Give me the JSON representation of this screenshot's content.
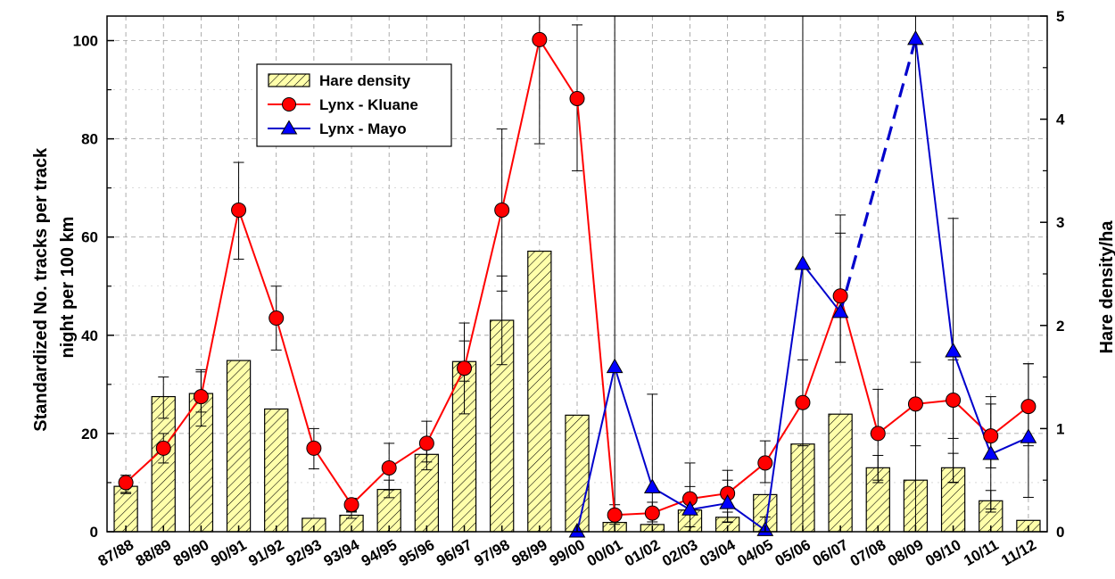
{
  "chart_data": {
    "type": "bar+line",
    "title": "",
    "xlabel": "",
    "ylabel_left": "Standardized No. tracks per track night per 100 km",
    "ylabel_left_lines": [
      "Standardized No. tracks per track",
      "night per 100 km"
    ],
    "ylabel_right": "Hare density/ha",
    "categories": [
      "87/88",
      "88/89",
      "89/90",
      "90/91",
      "91/92",
      "92/93",
      "93/94",
      "94/95",
      "95/96",
      "96/97",
      "97/98",
      "98/99",
      "99/00",
      "00/01",
      "01/02",
      "02/03",
      "03/04",
      "04/05",
      "05/06",
      "06/07",
      "07/08",
      "08/09",
      "09/10",
      "10/11",
      "11/12"
    ],
    "ylim_left": [
      0,
      105
    ],
    "yticks_left": [
      0,
      20,
      40,
      60,
      80,
      100
    ],
    "ylim_right": [
      0,
      5
    ],
    "yticks_right": [
      0,
      1,
      2,
      3,
      4,
      5
    ],
    "grid": true,
    "legend_position": "top-left",
    "series": [
      {
        "name": "Hare density",
        "kind": "bar",
        "axis": "right",
        "color": "#ffffaa",
        "hatch": true,
        "values": [
          0.44,
          1.31,
          1.34,
          1.66,
          1.19,
          0.13,
          0.16,
          0.41,
          0.75,
          1.65,
          2.05,
          2.72,
          1.13,
          0.09,
          0.07,
          0.21,
          0.14,
          0.36,
          0.85,
          1.14,
          0.62,
          0.5,
          0.62,
          0.3,
          0.11
        ],
        "err_low": [
          0.37,
          1.1,
          1.16,
          null,
          null,
          null,
          0.13,
          0.33,
          0.6,
          1.46,
          1.62,
          null,
          null,
          null,
          null,
          null,
          0.09,
          null,
          null,
          null,
          0.5,
          null,
          0.48,
          0.22,
          null
        ],
        "err_high": [
          0.52,
          1.5,
          1.55,
          null,
          null,
          null,
          0.2,
          0.5,
          0.9,
          1.85,
          2.48,
          null,
          null,
          null,
          null,
          null,
          0.19,
          null,
          null,
          null,
          0.74,
          null,
          0.76,
          0.4,
          null
        ]
      },
      {
        "name": "Lynx - Kluane",
        "kind": "line",
        "axis": "left",
        "color": "#ff0000",
        "marker": "circle",
        "values": [
          10,
          17,
          27.5,
          65.5,
          43.5,
          17,
          5.5,
          13,
          18,
          33.3,
          65.5,
          100.2,
          88.2,
          3.4,
          3.8,
          6.7,
          7.8,
          14,
          26.3,
          48,
          20,
          26,
          26.8,
          19.5,
          25.5
        ],
        "err_low": [
          8,
          14,
          21.5,
          55.5,
          37,
          12.8,
          4,
          8.5,
          14.2,
          24,
          49,
          79,
          73.5,
          1.5,
          1.5,
          4.2,
          5,
          10,
          17.5,
          34.5,
          10,
          17.5,
          19,
          13,
          17.5
        ],
        "err_high": [
          11.5,
          20,
          33,
          75.2,
          50,
          21,
          6.8,
          18,
          22.5,
          42.5,
          82,
          106,
          103.2,
          5.5,
          6,
          9.2,
          10.5,
          18.5,
          35,
          60.8,
          29,
          34.5,
          35,
          26,
          34.2
        ]
      },
      {
        "name": "Lynx - Mayo",
        "kind": "line",
        "axis": "left",
        "color": "#0000cc",
        "marker": "triangle",
        "start_index": 12,
        "dashed_segment": [
          19,
          21
        ],
        "values": [
          null,
          null,
          null,
          null,
          null,
          null,
          null,
          null,
          null,
          null,
          null,
          null,
          0,
          33.5,
          9,
          4.5,
          5.8,
          0.3,
          54.5,
          44.7,
          null,
          100.3,
          36.7,
          15.8,
          19.2
        ],
        "err_low": [
          null,
          null,
          null,
          null,
          null,
          null,
          null,
          null,
          null,
          null,
          null,
          null,
          null,
          0,
          2,
          1,
          2,
          0,
          0,
          34.5,
          null,
          0,
          10,
          4,
          7
        ],
        "err_high": [
          null,
          null,
          null,
          null,
          null,
          null,
          null,
          null,
          null,
          null,
          null,
          null,
          null,
          105,
          28,
          14,
          12.5,
          3,
          105,
          64.5,
          null,
          105,
          63.8,
          27.5,
          34.2
        ]
      }
    ]
  }
}
